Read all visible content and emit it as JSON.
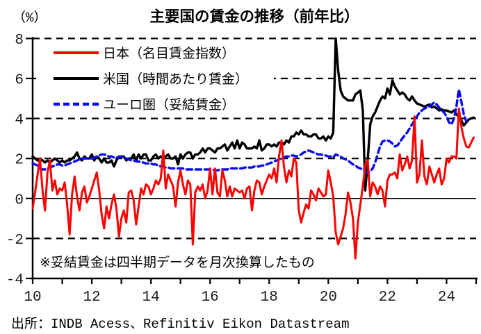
{
  "header": {
    "unit": "（%）",
    "title": "主要国の賃金の推移（前年比）"
  },
  "legend": {
    "items": [
      {
        "label": "日本（名目賃金指数）",
        "color": "#ff0000",
        "style": "solid"
      },
      {
        "label": "米国（時間あたり賃金）",
        "color": "#000000",
        "style": "solid"
      },
      {
        "label": "ユーロ圏（妥結賃金）",
        "color": "#0a0af0",
        "style": "dashed"
      }
    ]
  },
  "note": "※妥結賃金は四半期データを月次換算したもの",
  "source": "出所：INDB Acess、Refinitiv Eikon Datastream",
  "chart_data": {
    "type": "line",
    "title": "主要国の賃金の推移（前年比）",
    "unit": "%",
    "x_start": "2010-01",
    "frequency": "monthly",
    "xlim": [
      2010,
      2025
    ],
    "ylim": [
      -4,
      8
    ],
    "yticks": [
      -4,
      -2,
      0,
      2,
      4,
      6,
      8
    ],
    "xticks": [
      2010,
      2011,
      2012,
      2013,
      2014,
      2015,
      2016,
      2017,
      2018,
      2019,
      2020,
      2021,
      2022,
      2023,
      2024,
      2025
    ],
    "xtick_labeled_years": [
      2010,
      2012,
      2014,
      2016,
      2018,
      2020,
      2022,
      2024
    ],
    "gridlines_dashed_at": [
      8,
      6,
      4,
      2,
      -2
    ],
    "legend_position": "top-left-inside",
    "series": [
      {
        "name": "日本（名目賃金指数）",
        "color": "#ff0000",
        "style": "solid",
        "values": [
          -0.5,
          0.3,
          1.2,
          2.0,
          0.4,
          -0.6,
          1.3,
          1.9,
          0.4,
          0.9,
          0.2,
          0.5,
          0.4,
          0.8,
          -0.3,
          -1.8,
          0.2,
          1.1,
          0.1,
          -0.6,
          0.3,
          0.6,
          -0.2,
          0.1,
          0.5,
          0.9,
          1.3,
          0.4,
          -0.8,
          -1.5,
          -0.4,
          -1.0,
          -0.3,
          0.2,
          -0.5,
          -1.9,
          -1.0,
          -0.6,
          -1.2,
          0.3,
          0.4,
          -0.1,
          -1.3,
          -0.4,
          0.5,
          0.2,
          0.7,
          0.6,
          0.2,
          0.5,
          0.9,
          0.7,
          1.0,
          2.4,
          0.5,
          1.2,
          0.9,
          0.6,
          -0.4,
          0.8,
          1.4,
          0.7,
          0.2,
          0.9,
          0.7,
          -2.3,
          0.3,
          0.6,
          0.4,
          0.7,
          0.0,
          0.4,
          1.5,
          0.2,
          1.5,
          0.3,
          0.1,
          1.4,
          0.9,
          0.1,
          0.6,
          0.1,
          0.5,
          0.4,
          0.3,
          0.4,
          0.0,
          0.5,
          0.6,
          -0.6,
          0.4,
          0.9,
          0.8,
          0.2,
          0.6,
          0.9,
          1.2,
          1.0,
          1.5,
          0.8,
          2.1,
          2.9,
          1.6,
          0.8,
          1.4,
          1.1,
          2.0,
          1.8,
          -0.6,
          -1.2,
          -0.7,
          -0.3,
          -0.5,
          0.4,
          0.2,
          -0.1,
          0.5,
          0.3,
          0.1,
          0.2,
          1.4,
          0.8,
          0.1,
          -1.7,
          -2.3,
          -1.9,
          -1.5,
          -0.8,
          0.3,
          -0.2,
          -1.0,
          -3.0,
          -1.2,
          -0.3,
          0.6,
          1.7,
          1.9,
          0.1,
          0.8,
          0.6,
          0.2,
          0.6,
          0.4,
          -0.4,
          0.9,
          1.2,
          1.2,
          1.3,
          1.0,
          2.2,
          1.4,
          1.7,
          2.1,
          1.5,
          1.9,
          4.1,
          0.8,
          1.2,
          2.9,
          1.1,
          0.7,
          1.6,
          1.2,
          0.8,
          1.2,
          1.5,
          0.7,
          1.0,
          2.0,
          1.8,
          2.1,
          2.1,
          2.0,
          4.5,
          3.6,
          3.0,
          2.6,
          2.55,
          2.8,
          3.05
        ]
      },
      {
        "name": "米国（時間あたり賃金）",
        "color": "#000000",
        "style": "solid",
        "values": [
          2.1,
          2.0,
          1.9,
          2.0,
          1.9,
          1.8,
          1.9,
          1.8,
          1.9,
          2.0,
          1.9,
          1.8,
          1.9,
          1.8,
          1.9,
          1.9,
          2.0,
          2.1,
          2.3,
          2.0,
          1.9,
          2.1,
          2.0,
          2.0,
          2.2,
          1.9,
          2.1,
          2.0,
          1.8,
          2.0,
          1.8,
          1.8,
          1.9,
          1.6,
          1.9,
          2.1,
          2.1,
          2.1,
          1.9,
          2.0,
          2.0,
          2.2,
          1.9,
          2.2,
          2.0,
          2.2,
          2.2,
          1.9,
          1.9,
          2.1,
          2.2,
          2.0,
          2.1,
          2.0,
          2.1,
          2.2,
          2.0,
          2.0,
          2.1,
          1.7,
          2.2,
          2.0,
          2.2,
          2.3,
          2.3,
          2.0,
          2.2,
          2.2,
          2.3,
          2.5,
          2.3,
          2.5,
          2.5,
          2.4,
          2.3,
          2.5,
          2.5,
          2.6,
          2.7,
          2.4,
          2.6,
          2.8,
          2.5,
          2.9,
          2.5,
          2.8,
          2.7,
          2.5,
          2.5,
          2.5,
          2.6,
          2.5,
          2.9,
          2.4,
          2.5,
          2.7,
          2.7,
          2.6,
          2.7,
          2.6,
          2.8,
          2.8,
          2.7,
          2.9,
          2.8,
          3.1,
          3.1,
          3.3,
          3.2,
          3.4,
          3.2,
          3.2,
          3.1,
          3.1,
          3.2,
          3.2,
          3.0,
          3.0,
          3.1,
          2.9,
          3.1,
          3.0,
          3.3,
          8.0,
          6.4,
          5.4,
          5.1,
          5.0,
          4.9,
          4.9,
          4.9,
          5.2,
          5.3,
          5.4,
          4.4,
          0.4,
          1.9,
          3.7,
          4.1,
          4.3,
          4.6,
          4.9,
          5.1,
          5.0,
          5.5,
          5.2,
          5.9,
          5.6,
          5.4,
          5.2,
          5.3,
          5.2,
          5.0,
          4.9,
          5.1,
          4.9,
          4.75,
          4.7,
          4.65,
          4.6,
          4.65,
          4.7,
          4.55,
          4.6,
          4.5,
          4.4,
          4.45,
          4.4,
          4.4,
          4.35,
          4.3,
          4.4,
          4.2,
          4.1,
          3.9,
          3.65,
          3.8,
          3.95,
          4.0,
          4.05
        ]
      },
      {
        "name": "ユーロ圏（妥結賃金）",
        "color": "#0a0af0",
        "style": "dashed",
        "values": [
          1.75,
          1.7,
          1.65,
          1.5,
          1.45,
          1.45,
          1.5,
          1.55,
          1.6,
          1.65,
          1.7,
          1.7,
          1.65,
          1.65,
          1.7,
          1.75,
          1.8,
          1.85,
          1.9,
          1.95,
          2.0,
          2.0,
          2.0,
          2.0,
          2.0,
          2.05,
          2.1,
          2.15,
          2.2,
          2.2,
          2.15,
          2.1,
          2.1,
          2.05,
          2.05,
          2.05,
          2.1,
          2.05,
          2.0,
          1.95,
          1.9,
          1.9,
          1.85,
          1.85,
          1.8,
          1.8,
          1.75,
          1.75,
          1.75,
          1.7,
          1.7,
          1.65,
          1.6,
          1.6,
          1.55,
          1.55,
          1.5,
          1.5,
          1.5,
          1.5,
          1.5,
          1.5,
          1.45,
          1.45,
          1.45,
          1.45,
          1.45,
          1.45,
          1.45,
          1.45,
          1.45,
          1.45,
          1.45,
          1.45,
          1.4,
          1.4,
          1.45,
          1.45,
          1.45,
          1.45,
          1.5,
          1.5,
          1.5,
          1.5,
          1.5,
          1.5,
          1.55,
          1.55,
          1.55,
          1.55,
          1.6,
          1.6,
          1.6,
          1.65,
          1.65,
          1.7,
          1.75,
          1.8,
          1.85,
          1.9,
          1.95,
          2.0,
          2.05,
          2.1,
          2.1,
          2.15,
          2.15,
          2.1,
          2.15,
          2.2,
          2.3,
          2.35,
          2.4,
          2.35,
          2.3,
          2.25,
          2.2,
          2.2,
          2.15,
          2.15,
          2.1,
          2.1,
          2.05,
          2.2,
          2.15,
          2.1,
          2.0,
          1.95,
          1.9,
          1.8,
          1.7,
          1.65,
          1.55,
          1.5,
          1.45,
          1.35,
          1.3,
          1.35,
          1.5,
          1.8,
          2.2,
          2.6,
          2.85,
          2.9,
          2.9,
          2.85,
          2.75,
          2.6,
          2.65,
          2.8,
          3.0,
          3.15,
          3.3,
          3.5,
          3.7,
          3.9,
          4.1,
          4.3,
          4.4,
          4.5,
          4.55,
          4.6,
          4.7,
          4.8,
          4.7,
          4.55,
          4.4,
          4.3,
          4.1,
          3.8,
          3.7,
          4.0,
          4.6,
          5.45,
          4.85,
          4.2,
          3.85
        ]
      }
    ]
  }
}
